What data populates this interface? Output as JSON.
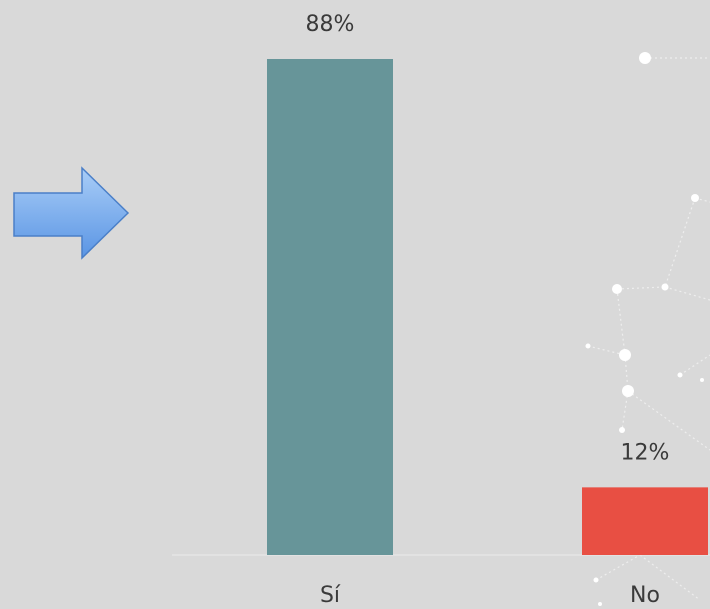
{
  "chart_data": {
    "type": "bar",
    "categories": [
      "Sí",
      "No"
    ],
    "values": [
      88,
      12
    ],
    "value_labels": [
      "88%",
      "12%"
    ],
    "colors": [
      "#679599",
      "#e84f43"
    ],
    "ylim": [
      0,
      88
    ]
  }
}
